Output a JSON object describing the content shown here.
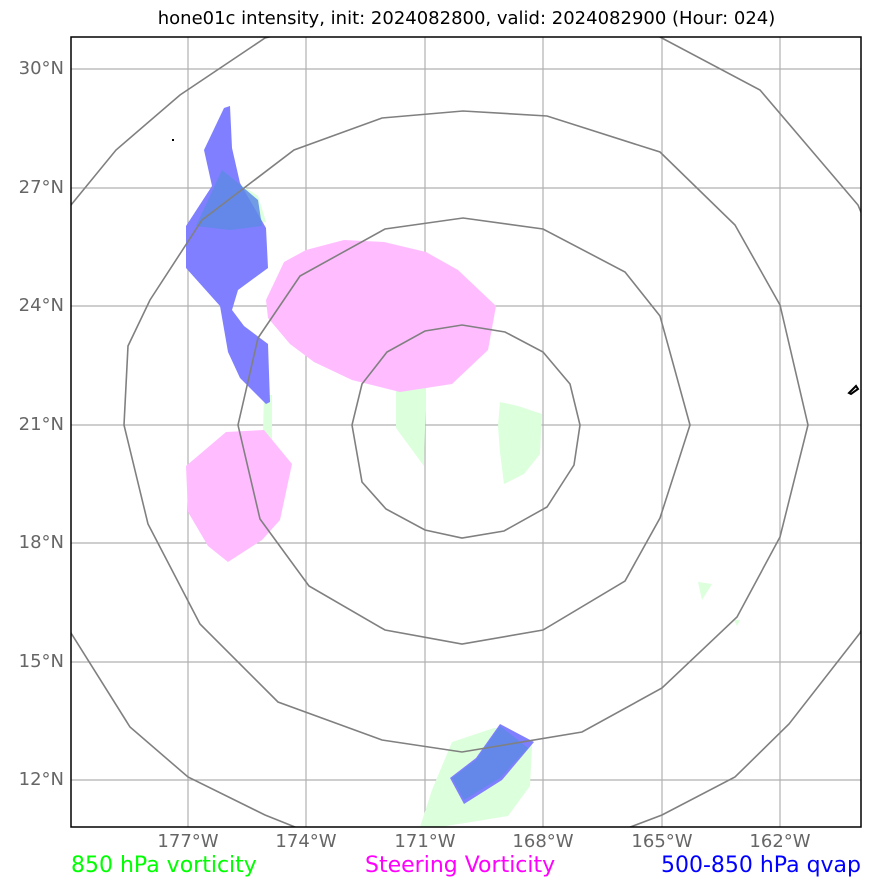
{
  "title": "hone01c intensity, init: 2024082800, valid: 2024082900 (Hour: 024)",
  "map": {
    "latitude_labels": [
      "30°N",
      "27°N",
      "24°N",
      "21°N",
      "18°N",
      "15°N",
      "12°N"
    ],
    "longitude_labels": [
      "177°W",
      "174°W",
      "171°W",
      "168°W",
      "165°W",
      "162°W"
    ]
  },
  "legend": {
    "vorticity_850": {
      "label": "850 hPa vorticity",
      "color": "#00ff00"
    },
    "steering_vorticity": {
      "label": "Steering Vorticity",
      "color": "#ff00ff"
    },
    "qvap_500_850": {
      "label": "500-850 hPa qvap",
      "color": "#0000ff"
    }
  },
  "colors": {
    "green_fill": "#dcffdc",
    "magenta_fill": "#ffbdff",
    "blue_fill": "#7f7fff",
    "grid": "#b0b0b0",
    "rings": "#808080"
  }
}
